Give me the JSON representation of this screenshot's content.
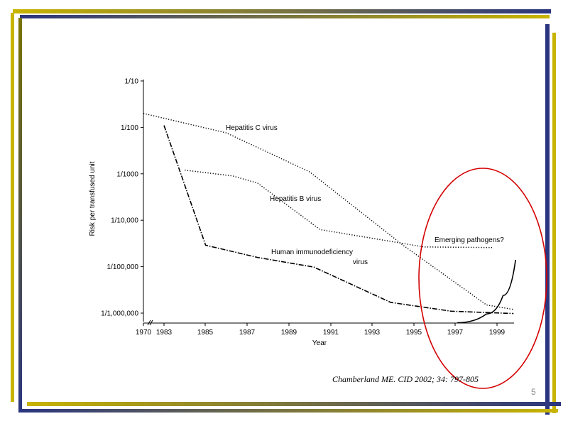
{
  "slide": {
    "citation": "Chamberland ME. CID 2002; 34: 797-805",
    "number": "5",
    "colors": {
      "gold": "#c8b400",
      "navy": "#2a3580",
      "olive": "#7b7400",
      "highlight": "#d40000"
    }
  },
  "chart_data": {
    "type": "line",
    "xlabel": "Year",
    "ylabel": "Risk per transfused unit",
    "y_scale": "log",
    "x_tick_labels": [
      "1970",
      "1983",
      "1985",
      "1987",
      "1989",
      "1991",
      "1993",
      "1995",
      "1997",
      "1999"
    ],
    "y_tick_labels": [
      "1/10",
      "1/100",
      "1/1000",
      "1/10,000",
      "1/100,000",
      "1/1,000,000"
    ],
    "grid": false,
    "axis_break": "between 1970 and 1983",
    "series": [
      {
        "name": "Hepatitis C  virus",
        "style": "dotted",
        "points": [
          [
            "1970",
            0.02
          ],
          [
            "1986",
            0.0076
          ],
          [
            "1990",
            0.0011
          ],
          [
            "1994.5",
            2.88e-05
          ],
          [
            "1998.5",
            1.5e-06
          ],
          [
            "1999.8",
            1.2e-06
          ]
        ]
      },
      {
        "name": "Hepatitis B  virus",
        "style": "dotted",
        "points": [
          [
            "1984",
            0.0012
          ],
          [
            "1986.3",
            0.0009
          ],
          [
            "1987.5",
            0.00063
          ],
          [
            "1990.5",
            6.3e-05
          ],
          [
            "1995.5",
            2.66e-05
          ],
          [
            "1998.8",
            2.58e-05
          ]
        ]
      },
      {
        "name": "Human immunodeficiency virus",
        "label_lines": [
          "Human immunodeficiency",
          "virus"
        ],
        "style": "dash-dot",
        "points": [
          [
            "1983",
            0.011
          ],
          [
            "1985",
            2.9e-05
          ],
          [
            "1987.5",
            1.58e-05
          ],
          [
            "1990.2",
            9.8e-06
          ],
          [
            "1993.9",
            1.7e-06
          ],
          [
            "1996.8",
            1.1e-06
          ],
          [
            "1999.8",
            9.8e-07
          ]
        ]
      },
      {
        "name": "Emerging pathogens?",
        "style": "solid",
        "points": [
          [
            "1997.1",
            6.2e-07
          ],
          [
            "1998.5",
            9.6e-07
          ],
          [
            "1999.3",
            2.4e-06
          ],
          [
            "1999.9",
            1.4e-05
          ]
        ]
      }
    ]
  }
}
